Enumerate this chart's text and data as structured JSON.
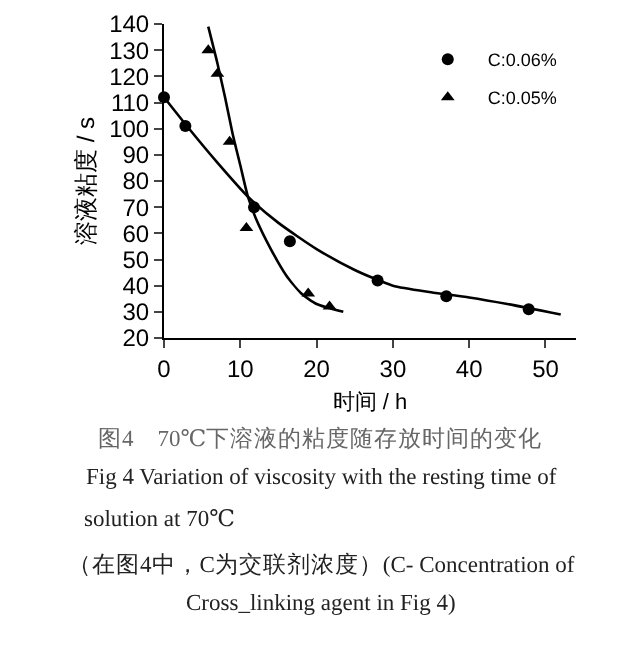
{
  "chart_data": {
    "type": "scatter",
    "xlabel": "时间 / h",
    "ylabel": "溶液粘度 / s",
    "xlim": [
      0,
      54
    ],
    "xticks": [
      0,
      10,
      20,
      30,
      40,
      50
    ],
    "ylim": [
      20,
      140
    ],
    "yticks": [
      20,
      30,
      40,
      50,
      60,
      70,
      80,
      90,
      100,
      110,
      120,
      130,
      140
    ],
    "grid": false,
    "legend": "top right",
    "series": [
      {
        "name": "C:0.06%",
        "color": "#000000",
        "marker": "circle",
        "x": [
          0,
          2.8,
          11.8,
          16.5,
          28,
          37,
          47.8
        ],
        "values": [
          112,
          101,
          70,
          57,
          42,
          36,
          31
        ]
      },
      {
        "name": "C:0.05%",
        "color": "#000000",
        "marker": "triangle",
        "x": [
          5.8,
          7,
          8.6,
          10.8,
          18.9,
          21.7
        ],
        "values": [
          130,
          121,
          95,
          62,
          37,
          32
        ]
      },
      {
        "type": "line",
        "color": "#000000",
        "marker": "none",
        "line_style": "solid",
        "x": [
          0,
          3,
          7,
          11,
          15,
          20,
          25,
          30,
          35,
          40,
          45,
          52
        ],
        "values": [
          112,
          101,
          87,
          74,
          64,
          54,
          46,
          40,
          37.5,
          35.5,
          33,
          29
        ]
      },
      {
        "type": "line",
        "color": "#000000",
        "marker": "none",
        "line_style": "solid",
        "x": [
          5.8,
          7,
          8,
          9,
          10,
          11,
          12,
          14,
          16,
          18,
          20,
          23.5
        ],
        "values": [
          139,
          125,
          112,
          98,
          86,
          74,
          66,
          54,
          44,
          37,
          33,
          30
        ]
      }
    ],
    "annotations": [
      "图4　70℃下溶液的粘度随存放时间的变化",
      "Fig 4 Variation of viscosity with the resting time of",
      "solution at 70℃",
      "（在图4中，C为交联剂浓度）(C- Concentration of",
      "Cross_linking agent in Fig 4)"
    ]
  }
}
